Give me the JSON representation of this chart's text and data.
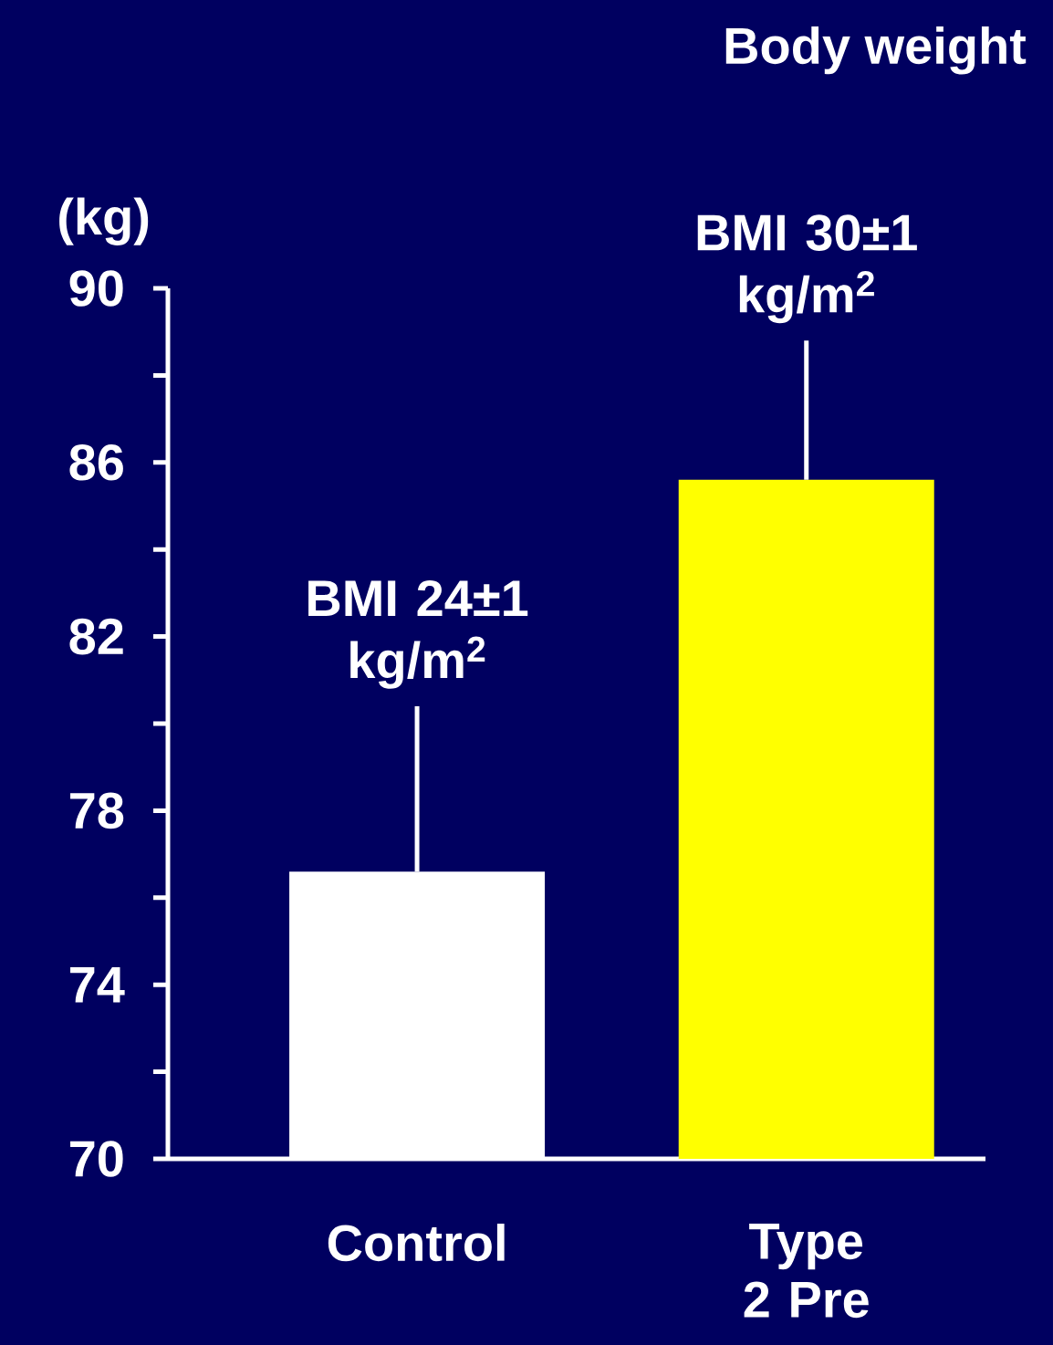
{
  "chart_data": {
    "type": "bar",
    "title": "Body weight",
    "ylabel": "(kg)",
    "categories": [
      "Control",
      "Type 2 Pre"
    ],
    "values": [
      76.6,
      85.6
    ],
    "colors": [
      "#ffffff",
      "#ffff00"
    ],
    "errors": [
      [
        76.6,
        80.4
      ],
      [
        85.6,
        88.8
      ]
    ],
    "ylim": [
      70,
      90
    ],
    "yticks": [
      70,
      {
        "value": 72,
        "label": null
      },
      74,
      {
        "value": 76,
        "label": null
      },
      78,
      {
        "value": 80,
        "label": null
      },
      82,
      {
        "value": 84,
        "label": null
      },
      86,
      {
        "value": 88,
        "label": null
      },
      90
    ],
    "annotations": [
      {
        "text": "BMI 24±1 kg/m$^{2}$",
        "x": "Control",
        "y": 80.4
      },
      {
        "text": "BMI 30±1 kg/m$^{2}$",
        "x": "Type 2 Pre",
        "y": 88.8
      }
    ],
    "grid": false
  }
}
